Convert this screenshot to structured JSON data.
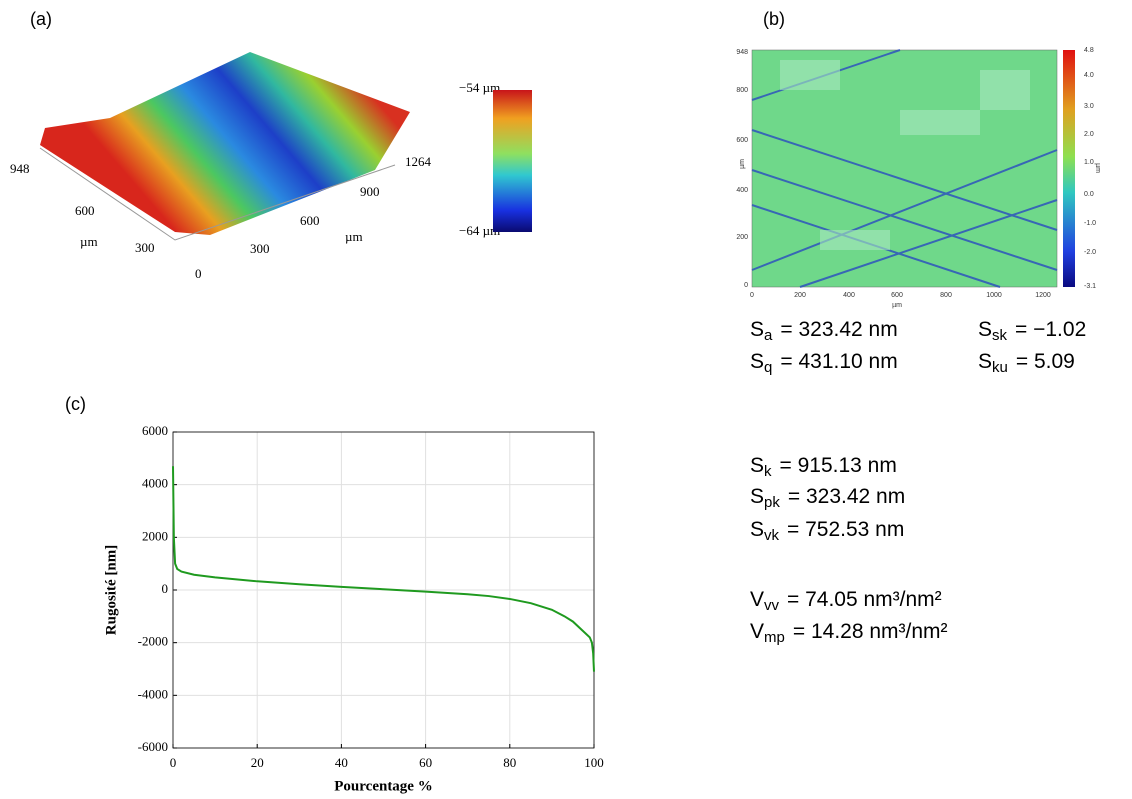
{
  "panels": {
    "a": {
      "label": "(a)",
      "axis_labels": [
        "948",
        "600",
        "µm",
        "300",
        "0",
        "300",
        "600",
        "µm",
        "900",
        "1264"
      ],
      "colorbar_labels": [
        "−54 µm",
        "−64 µm"
      ]
    },
    "b": {
      "label": "(b)",
      "y_labels": [
        "948",
        "800",
        "600",
        "µm",
        "400",
        "200",
        "0"
      ],
      "x_labels": [
        "0",
        "200",
        "400",
        "600",
        "800",
        "1000",
        "1200",
        "µm"
      ],
      "colorbar_labels": [
        "4.8",
        "4.0",
        "3.0",
        "2.0",
        "1.0",
        "0.0",
        "-1.0",
        "-2.0",
        "-3.1",
        "µm"
      ]
    },
    "c": {
      "label": "(c)"
    }
  },
  "parameters": [
    {
      "symbol": "S",
      "sub": "a",
      "text": "= 323.42 nm"
    },
    {
      "symbol": "S",
      "sub": "sk",
      "text": "= −1.02"
    },
    {
      "symbol": "S",
      "sub": "q",
      "text": "= 431.10 nm"
    },
    {
      "symbol": "S",
      "sub": "ku",
      "text": "= 5.09"
    },
    {
      "symbol": "S",
      "sub": "k",
      "text": "= 915.13  nm"
    },
    {
      "symbol": "S",
      "sub": "pk",
      "text": "= 323.42  nm"
    },
    {
      "symbol": "S",
      "sub": "vk",
      "text": "= 752.53  nm"
    },
    {
      "symbol": "V",
      "sub": "vv",
      "text": "= 74.05 nm³/nm²"
    },
    {
      "symbol": "V",
      "sub": "mp",
      "text": "= 14.28 nm³/nm²"
    }
  ],
  "chart_data": {
    "type": "line",
    "x": [
      0,
      0.2,
      0.5,
      1,
      2,
      5,
      10,
      20,
      30,
      40,
      50,
      60,
      70,
      75,
      80,
      85,
      90,
      93,
      95,
      97,
      99,
      99.5,
      99.8,
      100
    ],
    "values": [
      4700,
      2000,
      1000,
      800,
      700,
      580,
      480,
      330,
      220,
      120,
      30,
      -60,
      -160,
      -230,
      -340,
      -500,
      -750,
      -1000,
      -1200,
      -1500,
      -1800,
      -2000,
      -2400,
      -3100
    ],
    "color": "#1f9a1f",
    "xlabel": "Pourcentage %",
    "ylabel": "Rugosité [nm]",
    "xlim": [
      0,
      100
    ],
    "xticks": [
      0,
      20,
      40,
      60,
      80,
      100
    ],
    "ylim": [
      -6000,
      6000
    ],
    "yticks": [
      -6000,
      -4000,
      -2000,
      0,
      2000,
      4000,
      6000
    ],
    "grid": true
  }
}
